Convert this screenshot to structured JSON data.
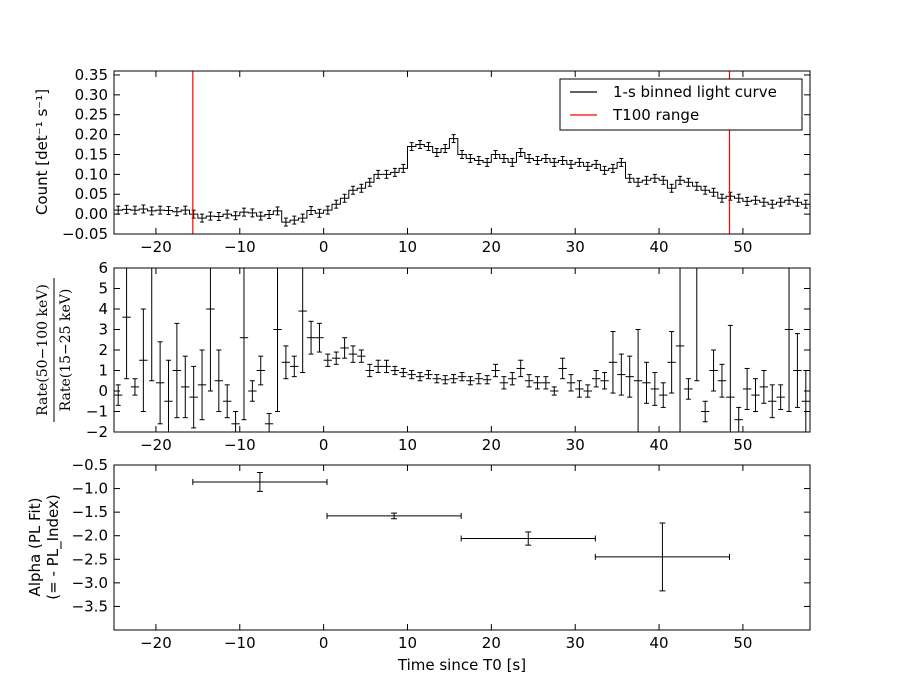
{
  "chart_data": [
    {
      "type": "line",
      "ylabel": "Count [det⁻¹ s⁻¹]",
      "xlim": [
        -25,
        58
      ],
      "ylim": [
        -0.05,
        0.36
      ],
      "xticks": [
        -20,
        -10,
        0,
        10,
        20,
        30,
        40,
        50
      ],
      "yticks": [
        -0.05,
        0.0,
        0.05,
        0.1,
        0.15,
        0.2,
        0.25,
        0.3,
        0.35
      ],
      "ytick_labels": [
        "−0.05",
        "0.00",
        "0.05",
        "0.10",
        "0.15",
        "0.20",
        "0.25",
        "0.30",
        "0.35"
      ],
      "xtick_labels": [
        "−20",
        "−10",
        "0",
        "10",
        "20",
        "30",
        "40",
        "50"
      ],
      "legend_position": "top-right",
      "legend": [
        {
          "label": "1-s binned light curve",
          "color": "#000000"
        },
        {
          "label": "T100 range",
          "color": "#ff0000"
        }
      ],
      "t100_range": [
        -15.6,
        48.4
      ],
      "bin_width": 1,
      "bin_start": -25,
      "values": [
        0.01,
        0.012,
        0.01,
        0.013,
        0.008,
        0.01,
        0.009,
        0.006,
        0.01,
        0.0,
        -0.01,
        -0.005,
        -0.006,
        0.0,
        -0.004,
        0.005,
        0.003,
        -0.005,
        -0.001,
        0.008,
        -0.02,
        -0.015,
        -0.01,
        0.009,
        0.002,
        0.01,
        0.025,
        0.04,
        0.06,
        0.065,
        0.08,
        0.1,
        0.1,
        0.105,
        0.115,
        0.17,
        0.175,
        0.17,
        0.155,
        0.165,
        0.19,
        0.15,
        0.14,
        0.135,
        0.13,
        0.15,
        0.14,
        0.13,
        0.155,
        0.14,
        0.135,
        0.14,
        0.13,
        0.135,
        0.125,
        0.13,
        0.12,
        0.125,
        0.11,
        0.115,
        0.13,
        0.09,
        0.08,
        0.085,
        0.09,
        0.085,
        0.065,
        0.085,
        0.08,
        0.07,
        0.06,
        0.055,
        0.04,
        0.045,
        0.04,
        0.032,
        0.035,
        0.03,
        0.025,
        0.03,
        0.035,
        0.03,
        0.025,
        0.015,
        0.015,
        0.01,
        0.01,
        0.015,
        0.02,
        0.025,
        0.015,
        0.025,
        0.03,
        0.02,
        0.015,
        0.02,
        0.015,
        0.015,
        0.02,
        0.01,
        0.02,
        0.015,
        0.02,
        0.018,
        0.025,
        0.02,
        0.008,
        -0.005,
        0.0,
        0.008,
        0.005,
        0.0,
        0.01,
        0.012,
        0.015,
        0.005,
        0.01,
        0.0,
        -0.01,
        0.015
      ],
      "error": 0.01
    },
    {
      "type": "scatter",
      "ylabel_num": "Rate(50−100 keV)",
      "ylabel_den": "Rate(15−25 keV)",
      "xlim": [
        -25,
        58
      ],
      "ylim": [
        -2,
        6
      ],
      "xticks": [
        -20,
        -10,
        0,
        10,
        20,
        30,
        40,
        50
      ],
      "yticks": [
        -2,
        -1,
        0,
        1,
        2,
        3,
        4,
        5,
        6
      ],
      "xtick_labels": [
        "−20",
        "−10",
        "0",
        "10",
        "20",
        "30",
        "40",
        "50"
      ],
      "ytick_labels": [
        "−2",
        "−1",
        "0",
        "1",
        "2",
        "3",
        "4",
        "5",
        "6"
      ],
      "points": [
        [
          -24.5,
          -0.2,
          0.5
        ],
        [
          -23.5,
          3.6,
          3.0
        ],
        [
          -22.5,
          0.2,
          0.4
        ],
        [
          -21.5,
          1.5,
          2.5
        ],
        [
          -20.5,
          6.5,
          6.0
        ],
        [
          -19.5,
          0.4,
          2.0
        ],
        [
          -18.5,
          -0.5,
          2.0
        ],
        [
          -17.5,
          1.0,
          2.3
        ],
        [
          -16.5,
          0.2,
          1.5
        ],
        [
          -15.5,
          -0.3,
          1.5
        ],
        [
          -14.5,
          0.3,
          1.7
        ],
        [
          -13.5,
          4.0,
          4.0
        ],
        [
          -12.5,
          0.5,
          1.5
        ],
        [
          -11.5,
          -0.5,
          0.8
        ],
        [
          -10.5,
          -1.6,
          0.6
        ],
        [
          -9.5,
          2.6,
          4.0
        ],
        [
          -8.5,
          0.0,
          0.5
        ],
        [
          -7.5,
          1.0,
          0.7
        ],
        [
          -6.5,
          -1.6,
          0.5
        ],
        [
          -5.5,
          3.0,
          4.0
        ],
        [
          -4.5,
          1.4,
          0.8
        ],
        [
          -3.5,
          1.2,
          0.5
        ],
        [
          -2.5,
          3.9,
          3.0
        ],
        [
          -1.5,
          2.6,
          0.8
        ],
        [
          -0.5,
          2.6,
          0.7
        ],
        [
          0.5,
          1.5,
          0.3
        ],
        [
          1.5,
          1.6,
          0.3
        ],
        [
          2.5,
          2.1,
          0.5
        ],
        [
          3.5,
          1.8,
          0.4
        ],
        [
          4.5,
          1.7,
          0.3
        ],
        [
          5.5,
          1.0,
          0.3
        ],
        [
          6.5,
          1.2,
          0.3
        ],
        [
          7.5,
          1.2,
          0.3
        ],
        [
          8.5,
          1.0,
          0.2
        ],
        [
          9.5,
          0.9,
          0.2
        ],
        [
          10.5,
          0.8,
          0.2
        ],
        [
          11.5,
          0.7,
          0.2
        ],
        [
          12.5,
          0.8,
          0.2
        ],
        [
          13.5,
          0.6,
          0.2
        ],
        [
          14.5,
          0.55,
          0.2
        ],
        [
          15.5,
          0.6,
          0.2
        ],
        [
          16.5,
          0.7,
          0.2
        ],
        [
          17.5,
          0.5,
          0.2
        ],
        [
          18.5,
          0.6,
          0.25
        ],
        [
          19.5,
          0.55,
          0.2
        ],
        [
          20.5,
          1.0,
          0.3
        ],
        [
          21.5,
          0.4,
          0.3
        ],
        [
          22.5,
          0.6,
          0.3
        ],
        [
          23.5,
          1.1,
          0.4
        ],
        [
          24.5,
          0.5,
          0.3
        ],
        [
          25.5,
          0.4,
          0.3
        ],
        [
          26.5,
          0.4,
          0.3
        ],
        [
          27.5,
          0.0,
          0.2
        ],
        [
          28.5,
          1.1,
          0.5
        ],
        [
          29.5,
          0.4,
          0.4
        ],
        [
          30.5,
          0.1,
          0.4
        ],
        [
          31.5,
          0.0,
          0.3
        ],
        [
          32.5,
          0.6,
          0.4
        ],
        [
          33.5,
          0.5,
          0.4
        ],
        [
          34.5,
          1.4,
          1.5
        ],
        [
          35.5,
          0.8,
          1.0
        ],
        [
          36.5,
          0.7,
          1.0
        ],
        [
          37.5,
          0.5,
          2.5
        ],
        [
          38.5,
          0.4,
          1.0
        ],
        [
          39.5,
          0.1,
          0.8
        ],
        [
          40.5,
          -0.2,
          0.6
        ],
        [
          41.5,
          1.4,
          1.5
        ],
        [
          42.5,
          2.2,
          4.5
        ],
        [
          43.5,
          0.1,
          0.5
        ],
        [
          44.5,
          6.5,
          6.0
        ],
        [
          45.5,
          -1.0,
          0.5
        ],
        [
          46.5,
          1.0,
          1.0
        ],
        [
          47.5,
          0.5,
          0.8
        ],
        [
          48.5,
          -0.3,
          3.5
        ],
        [
          49.5,
          -1.4,
          0.6
        ],
        [
          50.5,
          0.1,
          1.0
        ],
        [
          51.5,
          -0.2,
          0.8
        ],
        [
          52.5,
          0.2,
          0.8
        ],
        [
          53.5,
          -0.5,
          0.8
        ],
        [
          54.5,
          -0.3,
          0.6
        ],
        [
          55.5,
          3.0,
          4.0
        ],
        [
          56.5,
          1.0,
          1.8
        ],
        [
          57.5,
          -0.5,
          1.5
        ],
        [
          58.5,
          2.0,
          3.8
        ]
      ]
    },
    {
      "type": "scatter",
      "xlabel": "Time since T0 [s]",
      "ylabel_line1": "Alpha (PL Fit)",
      "ylabel_line2": "(= - PL_Index)",
      "xlim": [
        -25,
        58
      ],
      "ylim": [
        -4.0,
        -0.5
      ],
      "xticks": [
        -20,
        -10,
        0,
        10,
        20,
        30,
        40,
        50
      ],
      "yticks": [
        -3.5,
        -3.0,
        -2.5,
        -2.0,
        -1.5,
        -1.0,
        -0.5
      ],
      "xtick_labels": [
        "−20",
        "−10",
        "0",
        "10",
        "20",
        "30",
        "40",
        "50"
      ],
      "ytick_labels": [
        "−3.5",
        "−3.0",
        "−2.5",
        "−2.0",
        "−1.5",
        "−1.0",
        "−0.5"
      ],
      "points": [
        {
          "x": -7.6,
          "xerr": 8.0,
          "y": -0.86,
          "yerr": 0.2
        },
        {
          "x": 8.4,
          "xerr": 8.0,
          "y": -1.58,
          "yerr": 0.06
        },
        {
          "x": 24.4,
          "xerr": 8.0,
          "y": -2.06,
          "yerr": 0.14
        },
        {
          "x": 40.4,
          "xerr": 8.0,
          "y": -2.45,
          "yerr": 0.72
        }
      ]
    }
  ]
}
